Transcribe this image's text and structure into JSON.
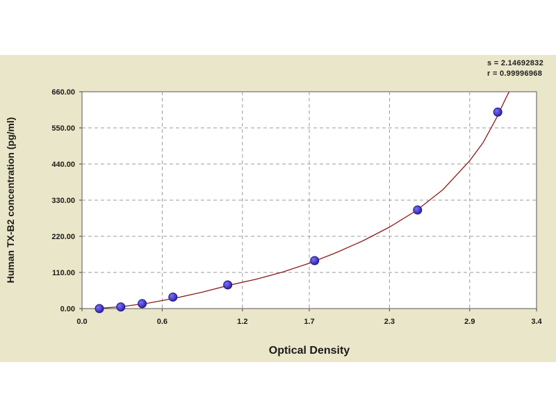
{
  "stats": {
    "s_line": "s = 2.14692832",
    "r_line": "r = 0.99996968"
  },
  "chart_data": {
    "type": "scatter",
    "title": "",
    "xlabel": "Optical Density",
    "ylabel": "Human TX-B2 concentration (pg/ml)",
    "xlim": [
      0.0,
      3.4
    ],
    "ylim": [
      0.0,
      660.0
    ],
    "x_ticks": [
      0.0,
      0.6,
      1.2,
      1.7,
      2.3,
      2.9,
      3.4
    ],
    "x_tick_labels": [
      "0.0",
      "0.6",
      "1.2",
      "1.7",
      "2.3",
      "2.9",
      "3.4"
    ],
    "y_ticks": [
      0,
      110,
      220,
      330,
      440,
      550,
      660
    ],
    "y_tick_labels": [
      "0.00",
      "110.00",
      "220.00",
      "330.00",
      "440.00",
      "550.00",
      "660.00"
    ],
    "grid": true,
    "colors": {
      "points": "#2b1fa6",
      "curve": "#8b1a1a",
      "plot_bg": "#ffffff",
      "panel_bg": "#eae6c9",
      "grid": "#9a9a9a"
    },
    "series": [
      {
        "values": [
          {
            "x": 0.13,
            "y": 0
          },
          {
            "x": 0.29,
            "y": 5
          },
          {
            "x": 0.45,
            "y": 15
          },
          {
            "x": 0.68,
            "y": 35
          },
          {
            "x": 1.09,
            "y": 72
          },
          {
            "x": 1.74,
            "y": 146
          },
          {
            "x": 2.51,
            "y": 300
          },
          {
            "x": 3.11,
            "y": 598
          }
        ]
      }
    ],
    "fit_curve": [
      {
        "x": 0.1,
        "y": 0
      },
      {
        "x": 0.3,
        "y": 6
      },
      {
        "x": 0.5,
        "y": 17
      },
      {
        "x": 0.7,
        "y": 32
      },
      {
        "x": 0.9,
        "y": 50
      },
      {
        "x": 1.1,
        "y": 71
      },
      {
        "x": 1.3,
        "y": 89
      },
      {
        "x": 1.5,
        "y": 111
      },
      {
        "x": 1.7,
        "y": 138
      },
      {
        "x": 1.9,
        "y": 170
      },
      {
        "x": 2.1,
        "y": 206
      },
      {
        "x": 2.3,
        "y": 248
      },
      {
        "x": 2.5,
        "y": 298
      },
      {
        "x": 2.7,
        "y": 362
      },
      {
        "x": 2.9,
        "y": 450
      },
      {
        "x": 3.0,
        "y": 505
      },
      {
        "x": 3.1,
        "y": 580
      },
      {
        "x": 3.17,
        "y": 640
      },
      {
        "x": 3.21,
        "y": 672
      }
    ]
  }
}
